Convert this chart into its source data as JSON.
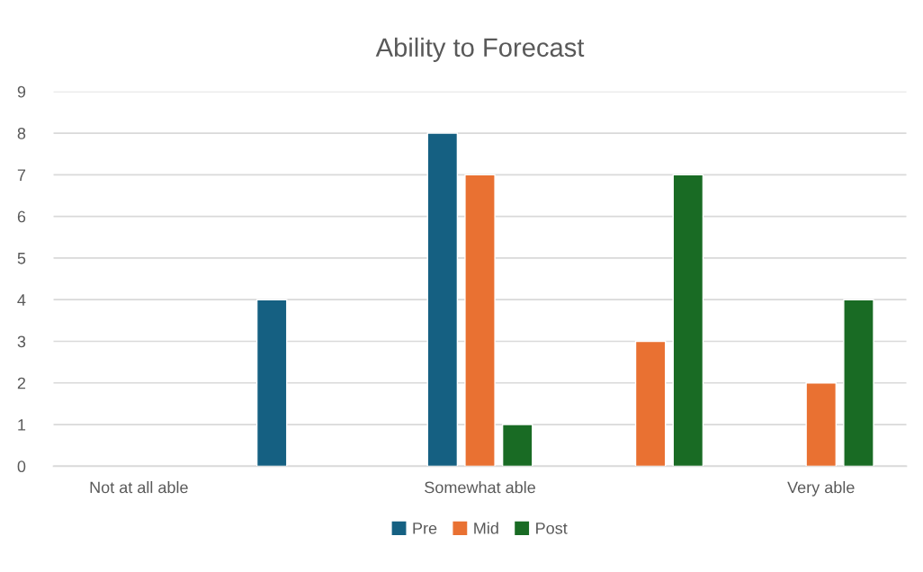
{
  "chart_data": {
    "type": "bar",
    "title": "Ability to Forecast",
    "categories": [
      "Not at all able",
      null,
      "Somewhat able",
      null,
      "Very able"
    ],
    "series": [
      {
        "name": "Pre",
        "color": "#156082",
        "values": [
          null,
          4,
          8,
          null,
          null
        ]
      },
      {
        "name": "Mid",
        "color": "#e97132",
        "values": [
          null,
          null,
          7,
          3,
          2
        ]
      },
      {
        "name": "Post",
        "color": "#196b24",
        "values": [
          null,
          null,
          1,
          7,
          4
        ]
      }
    ],
    "ylim": [
      0,
      9
    ],
    "yticks": [
      0,
      1,
      2,
      3,
      4,
      5,
      6,
      7,
      8,
      9
    ],
    "grid": "y",
    "legend": "bottom"
  }
}
